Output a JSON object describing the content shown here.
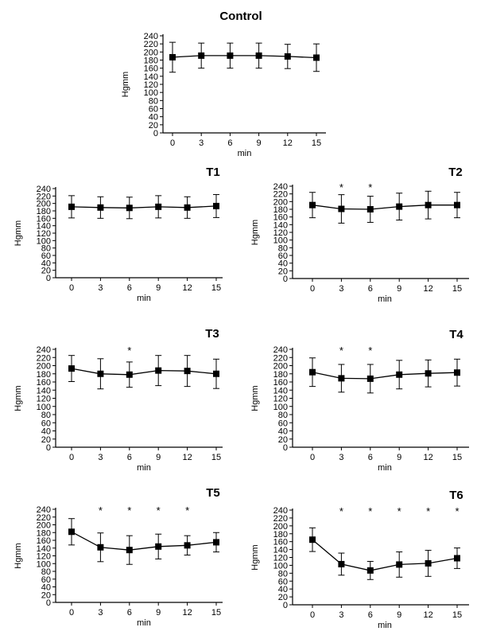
{
  "chart_data": [
    {
      "type": "line",
      "title": "Control",
      "xlabel": "min",
      "ylabel": "Hgmm",
      "x": [
        0,
        3,
        6,
        9,
        12,
        15
      ],
      "ylim": [
        0,
        240
      ],
      "y_ticks": [
        0,
        20,
        40,
        60,
        80,
        100,
        120,
        140,
        160,
        180,
        200,
        220,
        240
      ],
      "values": [
        187,
        191,
        191,
        191,
        189,
        186
      ],
      "error": [
        37,
        31,
        31,
        31,
        30,
        34
      ],
      "significant": [],
      "significance_mark": "*"
    },
    {
      "type": "line",
      "title": "T1",
      "xlabel": "min",
      "ylabel": "Hgmm",
      "x": [
        0,
        3,
        6,
        9,
        12,
        15
      ],
      "ylim": [
        0,
        240
      ],
      "y_ticks": [
        0,
        20,
        40,
        60,
        80,
        100,
        120,
        140,
        160,
        180,
        200,
        220,
        240
      ],
      "values": [
        191,
        189,
        188,
        191,
        189,
        193
      ],
      "error": [
        30,
        29,
        29,
        30,
        29,
        31
      ],
      "significant": [],
      "significance_mark": "*"
    },
    {
      "type": "line",
      "title": "T2",
      "xlabel": "min",
      "ylabel": "Hgmm",
      "x": [
        0,
        3,
        6,
        9,
        12,
        15
      ],
      "ylim": [
        0,
        240
      ],
      "y_ticks": [
        0,
        20,
        40,
        60,
        80,
        100,
        120,
        140,
        160,
        180,
        200,
        220,
        240
      ],
      "values": [
        191,
        181,
        180,
        187,
        191,
        191
      ],
      "error": [
        33,
        37,
        34,
        35,
        36,
        33
      ],
      "significant": [
        3,
        6
      ],
      "significance_mark": "*"
    },
    {
      "type": "line",
      "title": "T3",
      "xlabel": "min",
      "ylabel": "Hgmm",
      "x": [
        0,
        3,
        6,
        9,
        12,
        15
      ],
      "ylim": [
        0,
        240
      ],
      "y_ticks": [
        0,
        20,
        40,
        60,
        80,
        100,
        120,
        140,
        160,
        180,
        200,
        220,
        240
      ],
      "values": [
        193,
        180,
        178,
        188,
        187,
        180
      ],
      "error": [
        32,
        37,
        31,
        37,
        38,
        36
      ],
      "significant": [
        6
      ],
      "significance_mark": "*"
    },
    {
      "type": "line",
      "title": "T4",
      "xlabel": "min",
      "ylabel": "Hgmm",
      "x": [
        0,
        3,
        6,
        9,
        12,
        15
      ],
      "ylim": [
        0,
        240
      ],
      "y_ticks": [
        0,
        20,
        40,
        60,
        80,
        100,
        120,
        140,
        160,
        180,
        200,
        220,
        240
      ],
      "values": [
        184,
        169,
        168,
        178,
        181,
        183
      ],
      "error": [
        35,
        34,
        35,
        35,
        33,
        33
      ],
      "significant": [
        3,
        6
      ],
      "significance_mark": "*"
    },
    {
      "type": "line",
      "title": "T5",
      "xlabel": "min",
      "ylabel": "Hgmm",
      "x": [
        0,
        3,
        6,
        9,
        12,
        15
      ],
      "ylim": [
        0,
        240
      ],
      "y_ticks": [
        0,
        20,
        40,
        60,
        80,
        100,
        120,
        140,
        160,
        180,
        200,
        220,
        240
      ],
      "values": [
        182,
        142,
        135,
        144,
        147,
        155
      ],
      "error": [
        34,
        37,
        37,
        32,
        25,
        25
      ],
      "significant": [
        3,
        6,
        9,
        12
      ],
      "significance_mark": "*"
    },
    {
      "type": "line",
      "title": "T6",
      "xlabel": "min",
      "ylabel": "Hgmm",
      "x": [
        0,
        3,
        6,
        9,
        12,
        15
      ],
      "ylim": [
        0,
        240
      ],
      "y_ticks": [
        0,
        20,
        40,
        60,
        80,
        100,
        120,
        140,
        160,
        180,
        200,
        220,
        240
      ],
      "values": [
        165,
        103,
        87,
        102,
        105,
        118
      ],
      "error": [
        30,
        28,
        23,
        32,
        33,
        26
      ],
      "significant": [
        3,
        6,
        9,
        12,
        15
      ],
      "significance_mark": "*"
    }
  ]
}
